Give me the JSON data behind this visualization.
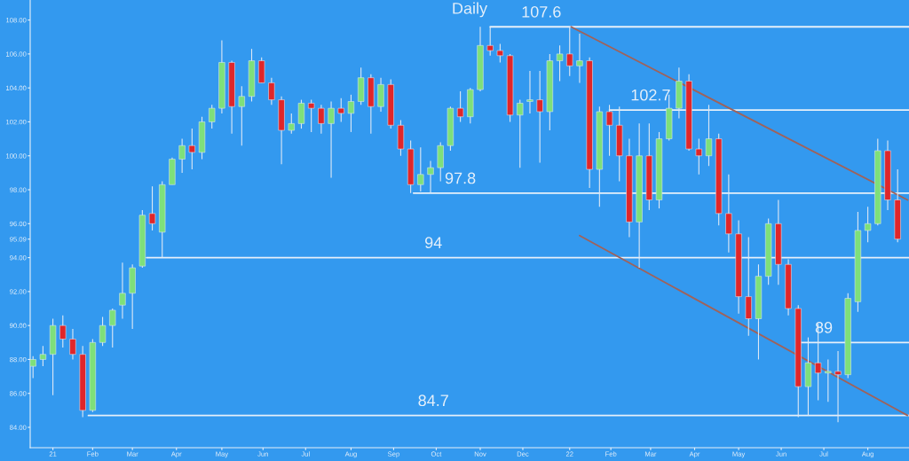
{
  "chart_data": {
    "type": "candlestick",
    "title": "Daily",
    "x": [
      "2020-12-21",
      "2020-12-28",
      "2021-01-04",
      "2021-01-11",
      "2021-01-18",
      "2021-01-25",
      "2021-02-01",
      "2021-02-08",
      "2021-02-15",
      "2021-02-22",
      "2021-03-01",
      "2021-03-08",
      "2021-03-15",
      "2021-03-22",
      "2021-03-29",
      "2021-04-05",
      "2021-04-12",
      "2021-04-19",
      "2021-04-26",
      "2021-05-03",
      "2021-05-10",
      "2021-05-17",
      "2021-05-24",
      "2021-05-31",
      "2021-06-07",
      "2021-06-14",
      "2021-06-21",
      "2021-06-28",
      "2021-07-05",
      "2021-07-12",
      "2021-07-19",
      "2021-07-26",
      "2021-08-02",
      "2021-08-09",
      "2021-08-16",
      "2021-08-23",
      "2021-08-30",
      "2021-09-06",
      "2021-09-13",
      "2021-09-20",
      "2021-09-27",
      "2021-10-04",
      "2021-10-11",
      "2021-10-18",
      "2021-10-25",
      "2021-11-01",
      "2021-11-08",
      "2021-11-15",
      "2021-11-22",
      "2021-11-29",
      "2021-12-06",
      "2021-12-13",
      "2021-12-20",
      "2021-12-27",
      "2022-01-03",
      "2022-01-10",
      "2022-01-17",
      "2022-01-24",
      "2022-01-31",
      "2022-02-07",
      "2022-02-14",
      "2022-02-21",
      "2022-02-28",
      "2022-03-07",
      "2022-03-14",
      "2022-03-21",
      "2022-03-28",
      "2022-04-04",
      "2022-04-11",
      "2022-04-18",
      "2022-04-25",
      "2022-05-02",
      "2022-05-09",
      "2022-05-16",
      "2022-05-23",
      "2022-05-30",
      "2022-06-06",
      "2022-06-13",
      "2022-06-20",
      "2022-06-27",
      "2022-07-04",
      "2022-07-11",
      "2022-07-18",
      "2022-07-25",
      "2022-08-01",
      "2022-08-08",
      "2022-08-15",
      "2022-08-22"
    ],
    "ohlc": [
      [
        87.6,
        88.2,
        86.9,
        88.0
      ],
      [
        88.0,
        88.8,
        87.6,
        88.3
      ],
      [
        88.3,
        90.4,
        85.9,
        90.0
      ],
      [
        90.0,
        90.6,
        88.7,
        89.2
      ],
      [
        89.2,
        89.8,
        88.0,
        88.3
      ],
      [
        88.3,
        88.8,
        84.6,
        85.0
      ],
      [
        85.0,
        89.2,
        84.9,
        89.0
      ],
      [
        89.0,
        90.5,
        88.8,
        90.0
      ],
      [
        90.0,
        91.0,
        88.7,
        90.9
      ],
      [
        91.2,
        93.7,
        90.4,
        91.9
      ],
      [
        91.9,
        93.6,
        89.8,
        93.4
      ],
      [
        93.5,
        96.8,
        93.4,
        96.5
      ],
      [
        96.6,
        98.2,
        95.6,
        96.0
      ],
      [
        95.5,
        98.5,
        94.0,
        98.3
      ],
      [
        98.3,
        99.9,
        98.3,
        99.8
      ],
      [
        99.8,
        101.0,
        99.0,
        100.6
      ],
      [
        100.6,
        101.6,
        99.2,
        100.2
      ],
      [
        100.2,
        102.3,
        99.8,
        102.0
      ],
      [
        102.0,
        103.0,
        101.6,
        102.8
      ],
      [
        102.8,
        106.8,
        102.5,
        105.5
      ],
      [
        105.5,
        105.6,
        101.3,
        102.9
      ],
      [
        102.9,
        104.1,
        100.6,
        103.5
      ],
      [
        103.5,
        106.3,
        103.2,
        105.6
      ],
      [
        105.6,
        105.8,
        104.3,
        104.3
      ],
      [
        104.3,
        104.6,
        103.0,
        103.3
      ],
      [
        103.3,
        103.5,
        99.5,
        101.5
      ],
      [
        101.5,
        102.5,
        101.3,
        101.9
      ],
      [
        101.9,
        103.3,
        101.6,
        103.1
      ],
      [
        103.1,
        103.3,
        101.4,
        102.8
      ],
      [
        102.8,
        103.0,
        101.3,
        101.9
      ],
      [
        101.9,
        103.2,
        98.7,
        102.8
      ],
      [
        102.8,
        103.4,
        102.0,
        102.5
      ],
      [
        102.5,
        103.6,
        101.4,
        103.2
      ],
      [
        103.2,
        105.2,
        103.0,
        104.6
      ],
      [
        104.6,
        104.8,
        101.3,
        102.9
      ],
      [
        102.9,
        104.6,
        102.6,
        104.2
      ],
      [
        104.2,
        104.5,
        101.6,
        101.8
      ],
      [
        101.8,
        102.1,
        100.0,
        100.4
      ],
      [
        100.4,
        100.9,
        97.8,
        98.3
      ],
      [
        98.3,
        100.5,
        97.9,
        98.9
      ],
      [
        98.9,
        99.7,
        97.8,
        99.3
      ],
      [
        99.3,
        100.8,
        98.5,
        100.6
      ],
      [
        100.6,
        102.9,
        100.3,
        102.8
      ],
      [
        102.8,
        103.8,
        102.0,
        102.3
      ],
      [
        102.3,
        104.0,
        101.9,
        103.9
      ],
      [
        103.9,
        107.6,
        103.8,
        106.5
      ],
      [
        106.5,
        107.6,
        105.9,
        106.2
      ],
      [
        106.2,
        106.6,
        105.5,
        105.9
      ],
      [
        105.9,
        106.0,
        102.0,
        102.4
      ],
      [
        102.4,
        103.3,
        99.3,
        103.1
      ],
      [
        103.2,
        105.0,
        102.5,
        103.3
      ],
      [
        103.3,
        105.0,
        99.6,
        102.6
      ],
      [
        102.6,
        106.0,
        101.5,
        105.6
      ],
      [
        105.6,
        106.5,
        104.4,
        106.0
      ],
      [
        106.0,
        107.6,
        104.7,
        105.3
      ],
      [
        105.3,
        107.2,
        104.3,
        105.6
      ],
      [
        105.6,
        105.8,
        98.1,
        99.2
      ],
      [
        99.2,
        102.9,
        97.0,
        102.6
      ],
      [
        102.6,
        103.0,
        100.0,
        101.8
      ],
      [
        101.8,
        102.9,
        98.5,
        100.0
      ],
      [
        100.0,
        101.0,
        95.2,
        96.1
      ],
      [
        96.1,
        101.9,
        93.4,
        100.0
      ],
      [
        100.0,
        101.9,
        96.8,
        97.4
      ],
      [
        97.4,
        101.4,
        96.9,
        101.0
      ],
      [
        101.0,
        103.6,
        100.9,
        102.8
      ],
      [
        102.8,
        105.2,
        102.2,
        104.4
      ],
      [
        104.4,
        104.8,
        100.3,
        100.4
      ],
      [
        100.4,
        101.0,
        98.9,
        100.0
      ],
      [
        100.0,
        103.0,
        99.4,
        101.0
      ],
      [
        101.0,
        101.3,
        95.9,
        96.6
      ],
      [
        96.6,
        98.9,
        94.3,
        95.4
      ],
      [
        95.4,
        96.2,
        90.7,
        91.7
      ],
      [
        91.7,
        95.2,
        89.4,
        90.4
      ],
      [
        90.4,
        93.6,
        88.0,
        92.9
      ],
      [
        92.9,
        96.3,
        92.4,
        96.0
      ],
      [
        96.0,
        97.4,
        92.4,
        93.6
      ],
      [
        93.6,
        93.9,
        90.6,
        91.0
      ],
      [
        91.0,
        91.2,
        84.6,
        86.4
      ],
      [
        86.4,
        89.3,
        84.7,
        87.8
      ],
      [
        87.8,
        90.1,
        85.6,
        87.2
      ],
      [
        87.2,
        88.0,
        85.5,
        87.3
      ],
      [
        87.3,
        88.5,
        84.3,
        87.1
      ],
      [
        87.1,
        91.9,
        86.9,
        91.6
      ],
      [
        91.4,
        96.7,
        90.8,
        95.6
      ],
      [
        95.6,
        97.0,
        94.9,
        96.0
      ],
      [
        96.0,
        101.0,
        95.9,
        100.3
      ],
      [
        100.3,
        100.9,
        96.8,
        97.4
      ],
      [
        97.4,
        99.2,
        94.9,
        95.09
      ]
    ],
    "series": [
      {
        "type": "line",
        "color": "#e6f0fa",
        "x": [
          "2021-11-08",
          "2022-08-30"
        ],
        "values": [
          107.6,
          107.6
        ]
      },
      {
        "type": "line",
        "color": "#e6f0fa",
        "x": [
          "2022-01-31",
          "2022-08-30"
        ],
        "values": [
          102.7,
          102.7
        ]
      },
      {
        "type": "line",
        "color": "#e6f0fa",
        "x": [
          "2021-09-15",
          "2022-08-30"
        ],
        "values": [
          97.8,
          97.8
        ]
      },
      {
        "type": "line",
        "color": "#e6f0fa",
        "x": [
          "2021-03-11",
          "2022-08-30"
        ],
        "values": [
          94,
          94
        ]
      },
      {
        "type": "line",
        "color": "#e6f0fa",
        "x": [
          "2022-06-13",
          "2022-08-30"
        ],
        "values": [
          89,
          89
        ]
      },
      {
        "type": "line",
        "color": "#e6f0fa",
        "x": [
          "2021-01-29",
          "2022-08-30"
        ],
        "values": [
          84.7,
          84.7
        ]
      },
      {
        "type": "line",
        "color": "#a0625a",
        "x": [
          "2022-01-04",
          "2022-08-29"
        ],
        "values": [
          107.6,
          97.4
        ]
      },
      {
        "type": "line",
        "color": "#a0625a",
        "x": [
          "2022-01-10",
          "2022-08-29"
        ],
        "values": [
          95.3,
          84.7
        ]
      }
    ],
    "annotations": [
      {
        "text": "107.6",
        "x": "2021-12-14",
        "y": 107.6
      },
      {
        "text": "102.7",
        "x": "2022-03-01",
        "y": 102.7
      },
      {
        "text": "97.8",
        "x": "2021-10-18",
        "y": 97.8
      },
      {
        "text": "94",
        "x": "2021-09-29",
        "y": 94
      },
      {
        "text": "89",
        "x": "2022-07-01",
        "y": 89
      },
      {
        "text": "84.7",
        "x": "2021-09-29",
        "y": 84.7
      }
    ],
    "xlim": [
      "2020-12-19",
      "2022-08-30"
    ],
    "xticks": [
      {
        "value": "2021-01-04",
        "label": "21"
      },
      {
        "value": "2021-02-01",
        "label": "Feb"
      },
      {
        "value": "2021-03-01",
        "label": "Mar"
      },
      {
        "value": "2021-04-01",
        "label": "Apr"
      },
      {
        "value": "2021-05-03",
        "label": "May"
      },
      {
        "value": "2021-06-01",
        "label": "Jun"
      },
      {
        "value": "2021-07-01",
        "label": "Jul"
      },
      {
        "value": "2021-08-02",
        "label": "Aug"
      },
      {
        "value": "2021-09-01",
        "label": "Sep"
      },
      {
        "value": "2021-10-01",
        "label": "Oct"
      },
      {
        "value": "2021-11-01",
        "label": "Nov"
      },
      {
        "value": "2021-12-01",
        "label": "Dec"
      },
      {
        "value": "2022-01-03",
        "label": "22"
      },
      {
        "value": "2022-02-01",
        "label": "Feb"
      },
      {
        "value": "2022-03-01",
        "label": "Mar"
      },
      {
        "value": "2022-04-01",
        "label": "Apr"
      },
      {
        "value": "2022-05-02",
        "label": "May"
      },
      {
        "value": "2022-06-01",
        "label": "Jun"
      },
      {
        "value": "2022-07-01",
        "label": "Jul"
      },
      {
        "value": "2022-08-01",
        "label": "Aug"
      }
    ],
    "ylim": [
      82.8,
      109.18
    ],
    "yticks": [
      {
        "value": 84,
        "label": "84.00"
      },
      {
        "value": 86,
        "label": "86.00"
      },
      {
        "value": 88,
        "label": "88.00"
      },
      {
        "value": 90,
        "label": "90.00"
      },
      {
        "value": 92,
        "label": "92.00"
      },
      {
        "value": 94,
        "label": "94.00"
      },
      {
        "value": 95.09,
        "label": "95.09"
      },
      {
        "value": 96,
        "label": "96.00"
      },
      {
        "value": 98,
        "label": "98.00"
      },
      {
        "value": 100,
        "label": "100.00"
      },
      {
        "value": 102,
        "label": "102.00"
      },
      {
        "value": 104,
        "label": "104.00"
      },
      {
        "value": 106,
        "label": "106.00"
      },
      {
        "value": 108,
        "label": "108.00"
      }
    ],
    "grid": false
  }
}
